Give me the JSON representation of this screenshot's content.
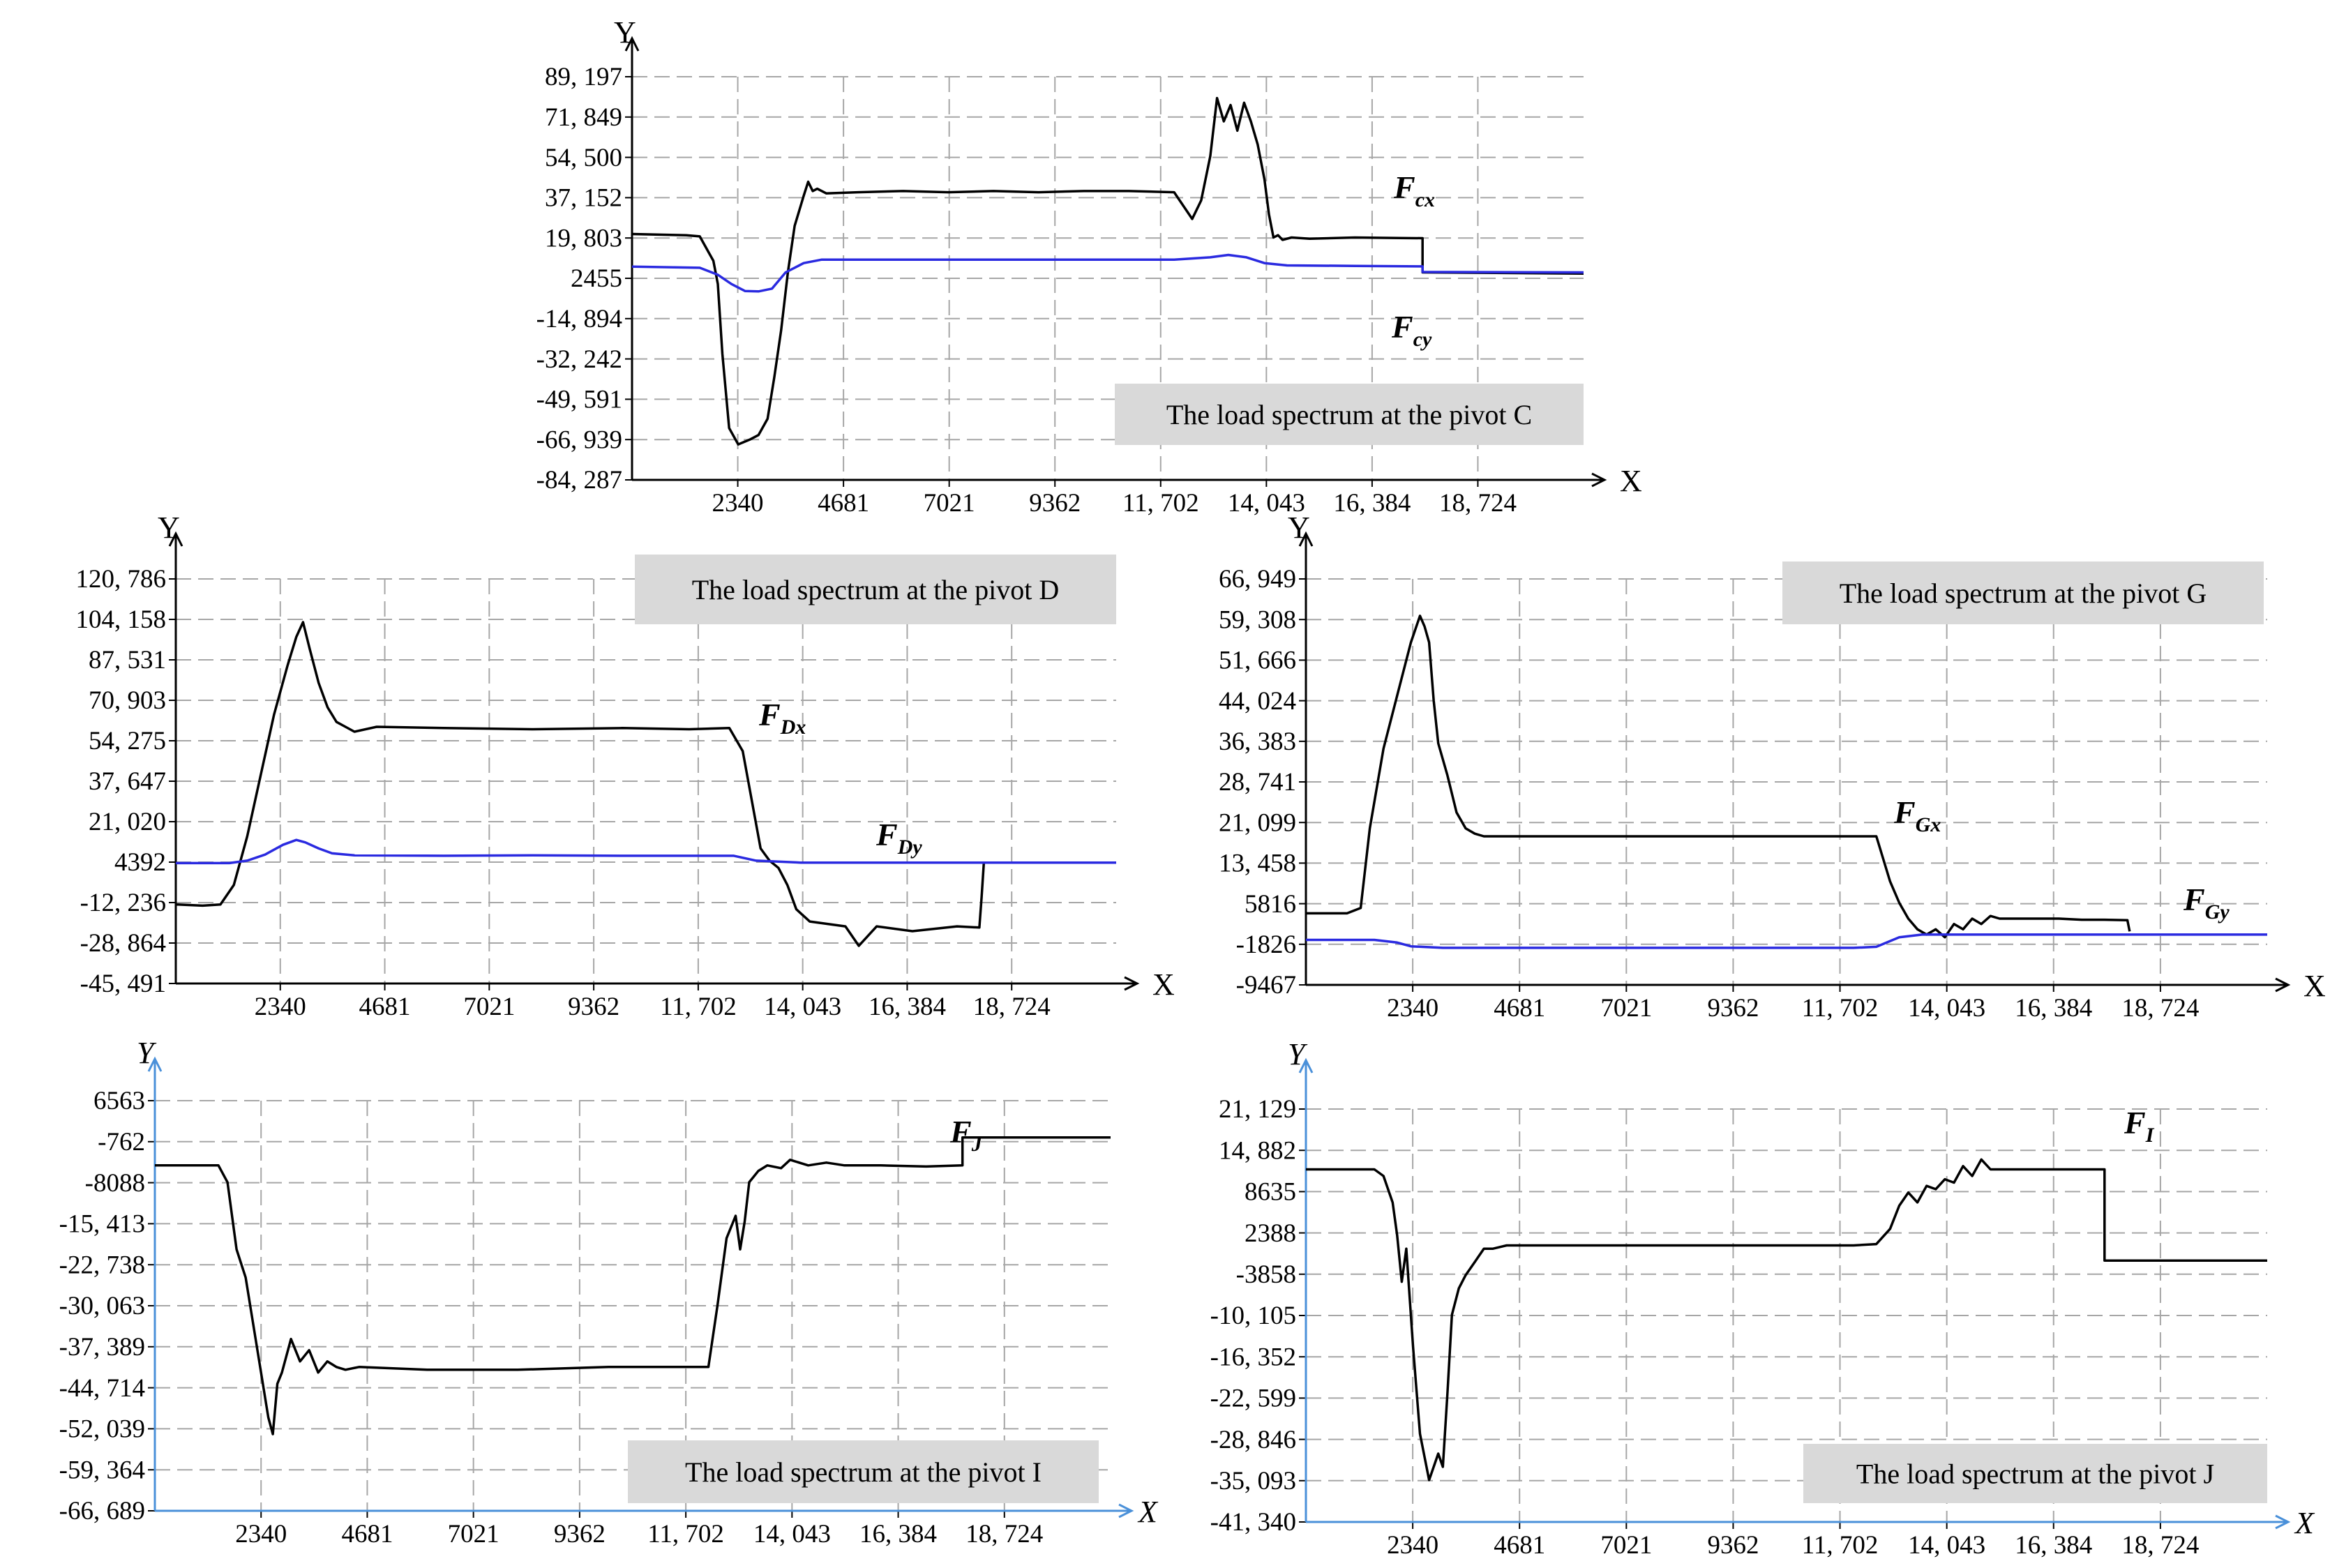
{
  "chart_data": [
    {
      "id": "C",
      "type": "line",
      "title": "The load spectrum at the pivot C",
      "xlabel": "X",
      "ylabel": "Y",
      "yticks": [
        "89, 197",
        "71, 849",
        "54, 500",
        "37, 152",
        "19, 803",
        "2455",
        "-14, 894",
        "-32, 242",
        "-49, 591",
        "-66, 939",
        "-84, 287"
      ],
      "ylim": [
        -84287,
        89197
      ],
      "xticks": [
        "2340",
        "4681",
        "7021",
        "9362",
        "11, 702",
        "14, 043",
        "16, 384",
        "18, 724"
      ],
      "xlim": [
        0,
        21064
      ],
      "grid": true,
      "series": [
        {
          "name": "F_cx",
          "label_main": "F",
          "label_sub": "cx",
          "color": "#000000",
          "x": [
            0,
            1200,
            1500,
            1800,
            1900,
            2000,
            2150,
            2350,
            2600,
            2800,
            3000,
            3150,
            3300,
            3450,
            3600,
            3800,
            3900,
            4000,
            4100,
            4300,
            5000,
            6000,
            7000,
            8000,
            9000,
            10000,
            11000,
            12000,
            12400,
            12600,
            12800,
            12950,
            13100,
            13250,
            13400,
            13550,
            13700,
            13850,
            14000,
            14100,
            14200,
            14300,
            14400,
            14600,
            15000,
            16000,
            17000,
            17500,
            17500,
            21064
          ],
          "y": [
            21500,
            21000,
            20500,
            10000,
            0,
            -30000,
            -62000,
            -69000,
            -67000,
            -65000,
            -58000,
            -40000,
            -20000,
            5000,
            25000,
            38000,
            44000,
            40000,
            41000,
            39000,
            39500,
            40000,
            39500,
            40000,
            39500,
            40000,
            40000,
            39500,
            28000,
            36000,
            55000,
            80000,
            70000,
            77000,
            66000,
            78000,
            70000,
            60000,
            45000,
            30000,
            20000,
            21000,
            19000,
            20000,
            19500,
            20000,
            19800,
            19700,
            5000,
            4500
          ]
        },
        {
          "name": "F_cy",
          "label_main": "F",
          "label_sub": "cy",
          "color": "#2a2ae0",
          "x": [
            0,
            1500,
            1900,
            2200,
            2500,
            2800,
            3100,
            3400,
            3800,
            4200,
            6000,
            8000,
            10000,
            12000,
            12800,
            13200,
            13600,
            14000,
            14500,
            16000,
            17500,
            17500,
            21064
          ],
          "y": [
            7500,
            7000,
            4000,
            0,
            -3000,
            -3200,
            -2000,
            5000,
            9000,
            10500,
            10500,
            10500,
            10500,
            10500,
            11500,
            12500,
            11500,
            9000,
            8000,
            7800,
            7600,
            5200,
            5000
          ]
        }
      ]
    },
    {
      "id": "D",
      "type": "line",
      "title": "The load spectrum at the pivot D",
      "xlabel": "X",
      "ylabel": "Y",
      "yticks": [
        "120, 786",
        "104, 158",
        "87, 531",
        "70, 903",
        "54, 275",
        "37, 647",
        "21, 020",
        "4392",
        "-12, 236",
        "-28, 864",
        "-45, 491"
      ],
      "ylim": [
        -45491,
        120786
      ],
      "xticks": [
        "2340",
        "4681",
        "7021",
        "9362",
        "11, 702",
        "14, 043",
        "16, 384",
        "18, 724"
      ],
      "xlim": [
        0,
        21064
      ],
      "grid": true,
      "series": [
        {
          "name": "F_Dx",
          "label_main": "F",
          "label_sub": "Dx",
          "color": "#000000",
          "x": [
            0,
            600,
            1000,
            1300,
            1600,
            1900,
            2200,
            2500,
            2700,
            2850,
            3000,
            3200,
            3400,
            3600,
            3800,
            4000,
            4500,
            6000,
            8000,
            10000,
            11500,
            12400,
            12700,
            12900,
            13100,
            13300,
            13500,
            13700,
            13900,
            14200,
            15000,
            15300,
            15700,
            16500,
            17500,
            18000,
            18050,
            18100
          ],
          "y": [
            -13000,
            -13500,
            -13000,
            -5000,
            15000,
            40000,
            65000,
            85000,
            97000,
            103000,
            92000,
            78000,
            68000,
            62000,
            60000,
            58000,
            60000,
            59500,
            59000,
            59500,
            59000,
            59500,
            50000,
            30000,
            10000,
            5000,
            2000,
            -5000,
            -15000,
            -20000,
            -22000,
            -30000,
            -22000,
            -24000,
            -22000,
            -22500,
            -10000,
            4000
          ]
        },
        {
          "name": "F_Dy",
          "label_main": "F",
          "label_sub": "Dy",
          "color": "#2a2ae0",
          "x": [
            0,
            1200,
            1600,
            2000,
            2400,
            2700,
            2900,
            3200,
            3500,
            4000,
            6000,
            8000,
            10000,
            12500,
            13000,
            14000,
            16000,
            18000,
            21064
          ],
          "y": [
            4000,
            4000,
            5000,
            7500,
            11500,
            13500,
            12500,
            10000,
            8000,
            7200,
            7000,
            7200,
            7000,
            7000,
            5000,
            4200,
            4200,
            4200,
            4200
          ]
        }
      ]
    },
    {
      "id": "G",
      "type": "line",
      "title": "The load spectrum at the pivot G",
      "xlabel": "X",
      "ylabel": "Y",
      "yticks": [
        "66, 949",
        "59, 308",
        "51, 666",
        "44, 024",
        "36, 383",
        "28, 741",
        "21, 099",
        "13, 458",
        "5816",
        "-1826",
        "-9467"
      ],
      "ylim": [
        -9467,
        66949
      ],
      "xticks": [
        "2340",
        "4681",
        "7021",
        "9362",
        "11, 702",
        "14, 043",
        "16, 384",
        "18, 724"
      ],
      "xlim": [
        0,
        21064
      ],
      "grid": true,
      "series": [
        {
          "name": "F_Gx",
          "label_main": "F",
          "label_sub": "Gx",
          "color": "#000000",
          "x": [
            0,
            900,
            1200,
            1400,
            1700,
            2000,
            2300,
            2500,
            2600,
            2700,
            2800,
            2900,
            3100,
            3300,
            3500,
            3700,
            3900,
            4100,
            4500,
            6000,
            8000,
            10000,
            12000,
            12500,
            12800,
            13000,
            13200,
            13400,
            13600,
            13800,
            14000,
            14200,
            14400,
            14600,
            14800,
            15000,
            15200,
            15600,
            16500,
            17000,
            17500,
            18000,
            18050
          ],
          "y": [
            4000,
            4000,
            5000,
            20000,
            35000,
            45000,
            55000,
            60000,
            58000,
            55000,
            44000,
            36000,
            30000,
            23000,
            20000,
            19000,
            18500,
            18500,
            18500,
            18500,
            18500,
            18500,
            18500,
            18500,
            10000,
            6000,
            3000,
            1000,
            0,
            1000,
            -500,
            2000,
            1000,
            3000,
            2000,
            3500,
            3000,
            3000,
            3000,
            2800,
            2800,
            2700,
            600
          ]
        },
        {
          "name": "F_Gy",
          "label_main": "F",
          "label_sub": "Gy",
          "color": "#2a2ae0",
          "x": [
            0,
            1500,
            2000,
            2300,
            3000,
            6000,
            9000,
            12000,
            12500,
            13000,
            13500,
            14000,
            16000,
            18000,
            21064
          ],
          "y": [
            -1000,
            -1000,
            -1500,
            -2200,
            -2500,
            -2500,
            -2500,
            -2500,
            -2300,
            -500,
            0,
            0,
            0,
            0,
            0
          ]
        }
      ]
    },
    {
      "id": "I",
      "type": "line",
      "title": "The load spectrum at the pivot I",
      "xlabel": "X",
      "ylabel": "Y",
      "yticks": [
        "6563",
        "-762",
        "-8088",
        "-15, 413",
        "-22, 738",
        "-30, 063",
        "-37, 389",
        "-44, 714",
        "-52, 039",
        "-59, 364",
        "-66, 689"
      ],
      "ylim": [
        -66689,
        6563
      ],
      "xticks": [
        "2340",
        "4681",
        "7021",
        "9362",
        "11, 702",
        "14, 043",
        "16, 384",
        "18, 724"
      ],
      "xlim": [
        0,
        21064
      ],
      "grid": true,
      "series": [
        {
          "name": "F_J",
          "label_main": "F",
          "label_sub": "J",
          "color": "#000000",
          "x": [
            0,
            1400,
            1600,
            1800,
            2000,
            2200,
            2400,
            2500,
            2600,
            2700,
            2800,
            3000,
            3200,
            3400,
            3600,
            3800,
            4000,
            4200,
            4500,
            6000,
            8000,
            10000,
            12200,
            12400,
            12600,
            12800,
            12900,
            13000,
            13100,
            13300,
            13500,
            13800,
            14000,
            14400,
            14800,
            15200,
            16000,
            17000,
            17800,
            17800,
            21064
          ],
          "y": [
            -5000,
            -5000,
            -8000,
            -20000,
            -25000,
            -35000,
            -45000,
            -50000,
            -53000,
            -44000,
            -42000,
            -36000,
            -40000,
            -38000,
            -42000,
            -40000,
            -41000,
            -41500,
            -41000,
            -41500,
            -41500,
            -41000,
            -41000,
            -30000,
            -18000,
            -14000,
            -20000,
            -15000,
            -8000,
            -6000,
            -5000,
            -5500,
            -4000,
            -5000,
            -4500,
            -5000,
            -5000,
            -5200,
            -5000,
            0,
            0
          ]
        }
      ]
    },
    {
      "id": "J",
      "type": "line",
      "title": "The load spectrum at the pivot J",
      "xlabel": "X",
      "ylabel": "Y",
      "yticks": [
        "21, 129",
        "14, 882",
        "8635",
        "2388",
        "-3858",
        "-10, 105",
        "-16, 352",
        "-22, 599",
        "-28, 846",
        "-35, 093",
        "-41, 340"
      ],
      "ylim": [
        -41340,
        21129
      ],
      "xticks": [
        "2340",
        "4681",
        "7021",
        "9362",
        "11, 702",
        "14, 043",
        "16, 384",
        "18, 724"
      ],
      "xlim": [
        0,
        21064
      ],
      "grid": true,
      "series": [
        {
          "name": "F_I",
          "label_main": "F",
          "label_sub": "I",
          "color": "#000000",
          "x": [
            0,
            1500,
            1700,
            1900,
            2000,
            2100,
            2200,
            2350,
            2500,
            2700,
            2900,
            3000,
            3100,
            3200,
            3350,
            3500,
            3700,
            3900,
            4100,
            4400,
            6000,
            8000,
            10000,
            12000,
            12500,
            12800,
            13000,
            13200,
            13400,
            13600,
            13800,
            14000,
            14200,
            14400,
            14600,
            14800,
            15000,
            15500,
            16500,
            17500,
            17500,
            21064
          ],
          "y": [
            12000,
            12000,
            11000,
            7000,
            2000,
            -5000,
            0,
            -15000,
            -28000,
            -35000,
            -31000,
            -33000,
            -22000,
            -10000,
            -6000,
            -4000,
            -2000,
            0,
            0,
            500,
            500,
            500,
            500,
            500,
            700,
            3000,
            6500,
            8500,
            7000,
            9500,
            9000,
            10500,
            10000,
            12500,
            11000,
            13500,
            12000,
            12000,
            12000,
            12000,
            -1800,
            -1800
          ]
        }
      ]
    }
  ]
}
